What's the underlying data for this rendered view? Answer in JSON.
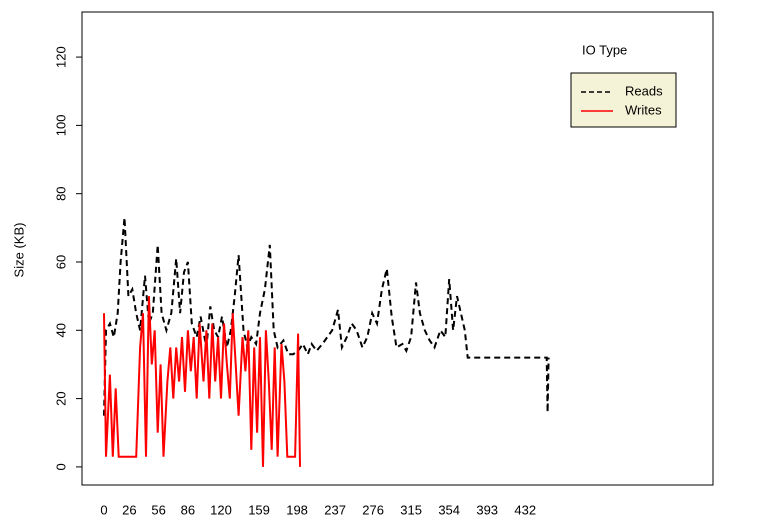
{
  "chart_data": {
    "type": "line",
    "ylabel": "Size (KB)",
    "legend_title": "IO Type",
    "legend_position": "topright",
    "xlim": [
      -22.6,
      624.6
    ],
    "ylim": [
      -5.3,
      133.2
    ],
    "xticks": [
      0,
      26,
      56,
      86,
      120,
      159,
      198,
      237,
      276,
      315,
      354,
      393,
      432
    ],
    "yticks": [
      0,
      20,
      40,
      60,
      80,
      100,
      120
    ],
    "series": [
      {
        "name": "Reads",
        "color": "#000000",
        "dashed": true,
        "x": [
          0,
          2,
          6,
          10,
          14,
          17,
          21,
          25,
          29,
          33,
          37,
          42,
          46,
          50,
          55,
          59,
          64,
          69,
          74,
          78,
          82,
          86,
          90,
          95,
          99,
          105,
          109,
          113,
          117,
          121,
          126,
          130,
          134,
          138,
          143,
          147,
          151,
          156,
          160,
          165,
          170,
          174,
          178,
          184,
          189,
          194,
          199,
          204,
          209,
          213,
          218,
          224,
          229,
          234,
          240,
          244,
          249,
          254,
          259,
          265,
          270,
          275,
          280,
          285,
          290,
          295,
          300,
          306,
          310,
          315,
          320,
          324,
          329,
          334,
          339,
          345,
          350,
          354,
          358,
          362,
          366,
          370,
          373,
          454,
          455,
          456
        ],
        "values": [
          15,
          40,
          42,
          38,
          45,
          60,
          73,
          50,
          52,
          45,
          40,
          56,
          42,
          45,
          65,
          45,
          40,
          45,
          61,
          45,
          57,
          60,
          42,
          38,
          44,
          35,
          47,
          40,
          38,
          44,
          35,
          40,
          50,
          62,
          40,
          35,
          38,
          36,
          45,
          52,
          65,
          40,
          35,
          37,
          33,
          33,
          34,
          36,
          33,
          36,
          34,
          36,
          38,
          40,
          46,
          35,
          38,
          42,
          40,
          35,
          38,
          45,
          42,
          52,
          58,
          44,
          35,
          36,
          34,
          38,
          54,
          45,
          40,
          37,
          35,
          40,
          38,
          55,
          40,
          50,
          45,
          40,
          32,
          32,
          16,
          32
        ]
      },
      {
        "name": "Writes",
        "color": "#ff0000",
        "dashed": false,
        "x": [
          0,
          2,
          6,
          9,
          12,
          15,
          20,
          27,
          33,
          37,
          40,
          43,
          46,
          49,
          52,
          55,
          58,
          61,
          65,
          68,
          71,
          74,
          77,
          80,
          83,
          86,
          89,
          92,
          95,
          98,
          102,
          105,
          108,
          111,
          114,
          117,
          120,
          123,
          126,
          129,
          132,
          135,
          138,
          142,
          145,
          148,
          151,
          154,
          157,
          160,
          163,
          166,
          169,
          172,
          175,
          178,
          182,
          185,
          188,
          192,
          196,
          199,
          201
        ],
        "values": [
          45,
          3,
          27,
          3,
          23,
          3,
          3,
          3,
          3,
          35,
          45,
          3,
          50,
          30,
          40,
          10,
          30,
          3,
          25,
          35,
          20,
          35,
          25,
          38,
          22,
          40,
          28,
          38,
          20,
          42,
          25,
          40,
          20,
          42,
          25,
          38,
          20,
          42,
          30,
          20,
          45,
          30,
          15,
          38,
          28,
          40,
          5,
          35,
          10,
          38,
          0,
          40,
          25,
          5,
          35,
          3,
          36,
          25,
          3,
          3,
          3,
          39,
          0
        ]
      }
    ]
  }
}
